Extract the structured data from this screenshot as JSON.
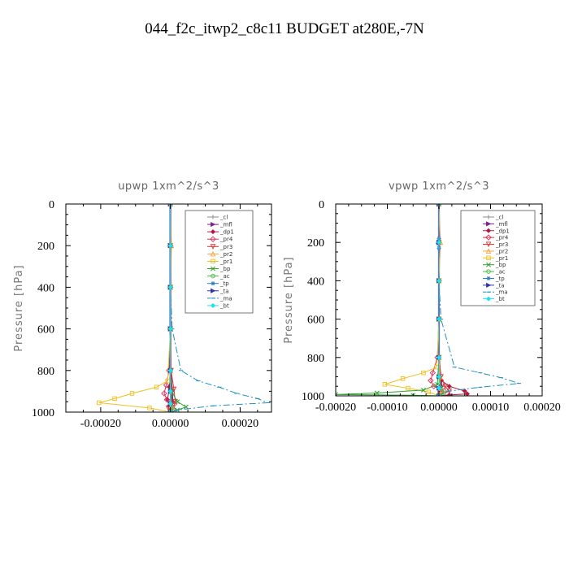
{
  "title": "044_f2c_itwp2_c8c11  BUDGET at280E,-7N",
  "chart_data": [
    {
      "type": "line",
      "subtitle": "upwp   1xm^2/s^3",
      "ylabel": "Pressure [hPa]",
      "xlim": [
        -0.0003,
        0.00029
      ],
      "ylim": [
        1000,
        0
      ],
      "xticks": [
        -0.0002,
        0.0,
        0.0002
      ],
      "xtick_labels": [
        "-0.00020",
        "0.00000",
        "0.00020"
      ],
      "yticks": [
        0,
        200,
        400,
        600,
        800,
        1000
      ],
      "ytick_labels": [
        "0",
        "200",
        "400",
        "600",
        "800",
        "1000"
      ],
      "legend_position": "top-right",
      "series": [
        {
          "name": "_cl",
          "color": "#8c8c8c",
          "marker": "plus",
          "dash": "",
          "x": [
            0,
            0,
            0,
            0,
            0,
            0,
            0,
            0
          ],
          "y": [
            0,
            200,
            400,
            600,
            800,
            900,
            960,
            1000
          ]
        },
        {
          "name": "_mfl",
          "color": "#7b2090",
          "marker": "tri-right",
          "dash": "",
          "x": [
            0,
            0,
            0,
            0,
            0,
            4e-06,
            6e-06,
            4e-06,
            0
          ],
          "y": [
            0,
            200,
            400,
            600,
            800,
            900,
            950,
            975,
            1000
          ]
        },
        {
          "name": "_dp1",
          "color": "#b01840",
          "marker": "diamond",
          "dash": "",
          "x": [
            0,
            0,
            0,
            0,
            0,
            -3e-06,
            -8e-06,
            -4e-06,
            0
          ],
          "y": [
            0,
            200,
            400,
            600,
            800,
            880,
            940,
            970,
            1000
          ]
        },
        {
          "name": "_pr4",
          "color": "#e0305a",
          "marker": "diamond-o",
          "dash": "",
          "x": [
            0,
            0,
            0,
            0,
            -4e-06,
            -1.2e-05,
            -1.8e-05,
            -1e-05,
            1.2e-05,
            8e-06,
            0
          ],
          "y": [
            0,
            200,
            400,
            600,
            800,
            870,
            910,
            940,
            960,
            985,
            1000
          ]
        },
        {
          "name": "_pr3",
          "color": "#e03030",
          "marker": "tri-down",
          "dash": "",
          "x": [
            0,
            0,
            0,
            0,
            2e-06,
            1e-05,
            1.4e-05,
            -6e-06,
            0
          ],
          "y": [
            0,
            200,
            400,
            600,
            800,
            890,
            950,
            980,
            1000
          ]
        },
        {
          "name": "_pr2",
          "color": "#ffa040",
          "marker": "tri-up",
          "dash": "",
          "x": [
            0,
            3e-06,
            0,
            0,
            0,
            2e-06,
            3e-06,
            0
          ],
          "y": [
            0,
            200,
            400,
            600,
            800,
            900,
            970,
            1000
          ]
        },
        {
          "name": "_pr1",
          "color": "#f0c020",
          "marker": "square",
          "dash": "",
          "x": [
            0,
            0,
            0,
            0,
            -8e-06,
            -4e-05,
            -0.00011,
            -0.00016,
            -0.000205,
            -6e-05,
            0
          ],
          "y": [
            0,
            200,
            400,
            600,
            850,
            880,
            910,
            935,
            955,
            980,
            1000
          ]
        },
        {
          "name": "_bp",
          "color": "#30a030",
          "marker": "x",
          "dash": "",
          "x": [
            0,
            0,
            0,
            0,
            0,
            3e-06,
            2e-05,
            4.5e-05,
            2e-05,
            0
          ],
          "y": [
            0,
            200,
            400,
            600,
            800,
            900,
            950,
            975,
            990,
            1000
          ]
        },
        {
          "name": "_ac",
          "color": "#40c040",
          "marker": "circle",
          "dash": "",
          "x": [
            0,
            0,
            0,
            0,
            0,
            0,
            6e-06,
            0
          ],
          "y": [
            0,
            200,
            400,
            600,
            800,
            900,
            980,
            1000
          ]
        },
        {
          "name": "_tp",
          "color": "#2878d0",
          "marker": "star",
          "dash": "",
          "x": [
            0,
            0,
            0,
            0,
            0,
            0,
            0,
            0
          ],
          "y": [
            0,
            200,
            400,
            600,
            800,
            900,
            960,
            1000
          ]
        },
        {
          "name": "_ta",
          "color": "#3030b0",
          "marker": "tri-right",
          "dash": "",
          "x": [
            0,
            0,
            0,
            0,
            0,
            0,
            0,
            0
          ],
          "y": [
            0,
            200,
            400,
            600,
            800,
            900,
            960,
            1000
          ]
        },
        {
          "name": "_ma",
          "color": "#2090c0",
          "marker": "dash",
          "dash": "8,3,2,3",
          "x": [
            0,
            0,
            0,
            5e-06,
            3e-05,
            8e-05,
            0.00014,
            0.00019,
            0.00025,
            0.00028,
            0.00012,
            2e-05,
            0
          ],
          "y": [
            0,
            200,
            400,
            600,
            800,
            850,
            880,
            910,
            935,
            955,
            970,
            990,
            1000
          ]
        },
        {
          "name": "_bt",
          "color": "#20e0f0",
          "marker": "diamond-f",
          "dash": "",
          "x": [
            0,
            0,
            0,
            0,
            0,
            0,
            0,
            0
          ],
          "y": [
            0,
            200,
            400,
            600,
            800,
            900,
            960,
            1000
          ]
        }
      ]
    },
    {
      "type": "line",
      "subtitle": "vpwp   1xm^2/s^3",
      "ylabel": "Pressure [hPa]",
      "xlim": [
        -0.0002,
        0.0002
      ],
      "ylim": [
        1000,
        0
      ],
      "xticks": [
        -0.0002,
        -0.0001,
        0.0,
        0.0001,
        0.0002
      ],
      "xtick_labels": [
        "-0.00020",
        "-0.00010",
        "0.00000",
        "0.00010",
        "0.00020"
      ],
      "yticks": [
        0,
        200,
        400,
        600,
        800,
        1000
      ],
      "ytick_labels": [
        "0",
        "200",
        "400",
        "600",
        "800",
        "1000"
      ],
      "legend_position": "top-right",
      "series": [
        {
          "name": "_cl",
          "color": "#8c8c8c",
          "marker": "plus",
          "dash": "",
          "x": [
            0,
            0,
            0,
            0,
            0,
            0,
            0,
            0
          ],
          "y": [
            0,
            200,
            400,
            600,
            800,
            900,
            960,
            1000
          ]
        },
        {
          "name": "_mfl",
          "color": "#7b2090",
          "marker": "tri-right",
          "dash": "",
          "x": [
            0,
            0,
            0,
            0,
            0,
            2e-06,
            5e-06,
            2e-06,
            0
          ],
          "y": [
            0,
            200,
            400,
            600,
            800,
            900,
            950,
            975,
            1000
          ]
        },
        {
          "name": "_dp1",
          "color": "#b01840",
          "marker": "diamond",
          "dash": "",
          "x": [
            0,
            0,
            0,
            0,
            0,
            5e-06,
            2e-05,
            5e-05,
            5.5e-05,
            2e-05,
            0
          ],
          "y": [
            0,
            200,
            400,
            600,
            800,
            920,
            950,
            975,
            990,
            995,
            1000
          ]
        },
        {
          "name": "_pr4",
          "color": "#e0305a",
          "marker": "diamond-o",
          "dash": "",
          "x": [
            0,
            0,
            0,
            0,
            -3e-06,
            -1.2e-05,
            -1.6e-05,
            -1e-05,
            1e-05,
            0
          ],
          "y": [
            0,
            200,
            400,
            600,
            800,
            880,
            920,
            950,
            975,
            1000
          ]
        },
        {
          "name": "_pr3",
          "color": "#e03030",
          "marker": "tri-down",
          "dash": "",
          "x": [
            0,
            0,
            0,
            0,
            0,
            4e-06,
            1.2e-05,
            2e-05,
            4e-06,
            0
          ],
          "y": [
            0,
            200,
            400,
            600,
            800,
            900,
            950,
            975,
            990,
            1000
          ]
        },
        {
          "name": "_pr2",
          "color": "#ffa040",
          "marker": "tri-up",
          "dash": "",
          "x": [
            0,
            3e-06,
            0,
            0,
            0,
            2e-06,
            3e-06,
            0
          ],
          "y": [
            0,
            200,
            400,
            600,
            800,
            900,
            970,
            1000
          ]
        },
        {
          "name": "_pr1",
          "color": "#f0c020",
          "marker": "square",
          "dash": "",
          "x": [
            0,
            0,
            0,
            0,
            -4e-06,
            -3e-05,
            -7e-05,
            -0.000105,
            -6e-05,
            -2e-05,
            0
          ],
          "y": [
            0,
            200,
            400,
            600,
            850,
            880,
            910,
            940,
            960,
            980,
            1000
          ]
        },
        {
          "name": "_bp",
          "color": "#30a030",
          "marker": "x",
          "dash": "",
          "x": [
            0,
            0,
            0,
            0,
            0,
            -3e-06,
            -3e-05,
            -0.00012,
            -0.0002,
            -5e-05,
            0
          ],
          "y": [
            0,
            200,
            400,
            600,
            800,
            940,
            970,
            985,
            993,
            997,
            1000
          ]
        },
        {
          "name": "_ac",
          "color": "#40c040",
          "marker": "circle",
          "dash": "",
          "x": [
            0,
            0,
            0,
            0,
            0,
            0,
            4e-06,
            1e-05,
            0
          ],
          "y": [
            0,
            200,
            400,
            600,
            800,
            900,
            960,
            985,
            1000
          ]
        },
        {
          "name": "_tp",
          "color": "#2878d0",
          "marker": "star",
          "dash": "",
          "x": [
            0,
            0,
            -2e-06,
            0,
            0,
            0,
            0,
            0
          ],
          "y": [
            0,
            180,
            205,
            230,
            800,
            900,
            960,
            1000
          ]
        },
        {
          "name": "_ta",
          "color": "#3030b0",
          "marker": "tri-right",
          "dash": "",
          "x": [
            0,
            0,
            0,
            0,
            0,
            0,
            0,
            0
          ],
          "y": [
            0,
            200,
            400,
            600,
            800,
            900,
            960,
            1000
          ]
        },
        {
          "name": "_ma",
          "color": "#2090c0",
          "marker": "dash",
          "dash": "8,3,2,3",
          "x": [
            0,
            0,
            0,
            4e-06,
            3e-05,
            8e-05,
            0.00012,
            0.000155,
            8e-05,
            2e-05,
            0
          ],
          "y": [
            0,
            200,
            400,
            600,
            850,
            880,
            905,
            935,
            955,
            975,
            1000
          ]
        },
        {
          "name": "_bt",
          "color": "#20e0f0",
          "marker": "diamond-f",
          "dash": "",
          "x": [
            0,
            0,
            0,
            0,
            0,
            0,
            0,
            0
          ],
          "y": [
            0,
            200,
            400,
            600,
            800,
            900,
            960,
            1000
          ]
        }
      ]
    }
  ]
}
